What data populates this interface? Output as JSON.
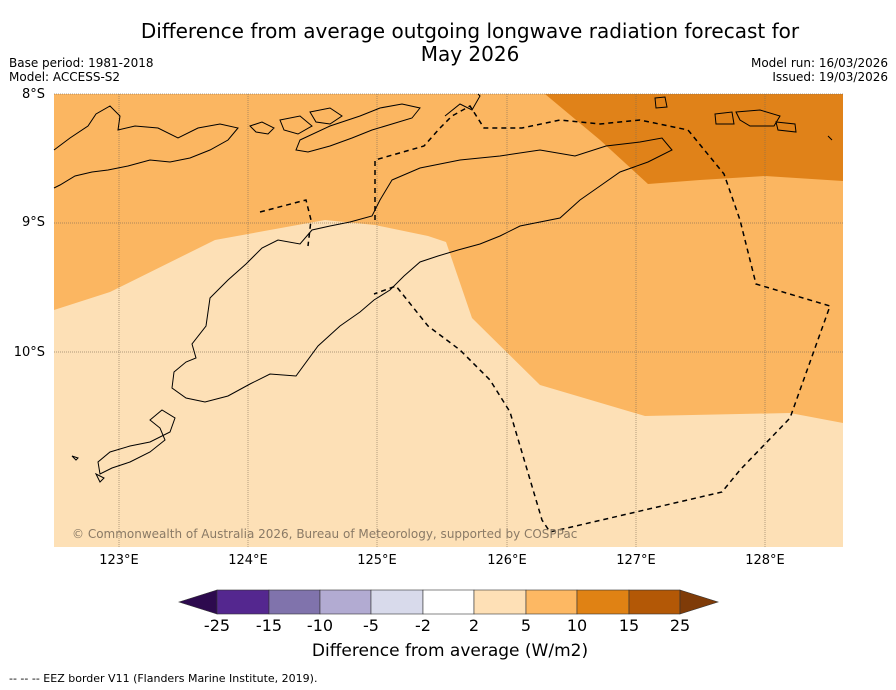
{
  "title": {
    "line1": "Difference from average outgoing longwave radiation forecast for",
    "line2": "May 2026"
  },
  "meta": {
    "base_period": "Base period: 1981-2018",
    "model": "Model: ACCESS-S2",
    "model_run": "Model run: 16/03/2026",
    "issued": "Issued: 19/03/2026"
  },
  "map": {
    "lat_labels": [
      "8°S",
      "9°S",
      "10°S"
    ],
    "lon_labels": [
      "123°E",
      "124°E",
      "125°E",
      "126°E",
      "127°E",
      "128°E"
    ],
    "copyright": "© Commonwealth of Australia 2026, Bureau of Meteorology, supported by COSPPac",
    "colors": {
      "band_2_5": "#fde0b6",
      "band_5_10": "#fbb661",
      "band_10_15": "#e08219",
      "land_outline": "#000000"
    }
  },
  "colorbar": {
    "ticks": [
      "-25",
      "-15",
      "-10",
      "-5",
      "-2",
      "2",
      "5",
      "10",
      "15",
      "25"
    ],
    "colors": [
      "#2d0a4e",
      "#54278f",
      "#8073ac",
      "#b2abd2",
      "#d8daeb",
      "#ffffff",
      "#fee0b6",
      "#fdb863",
      "#e08214",
      "#b35806",
      "#7f3b08"
    ],
    "label": "Difference from average (W/m2)"
  },
  "footer": "--  --  -- EEZ border V11 (Flanders Marine Institute, 2019)."
}
